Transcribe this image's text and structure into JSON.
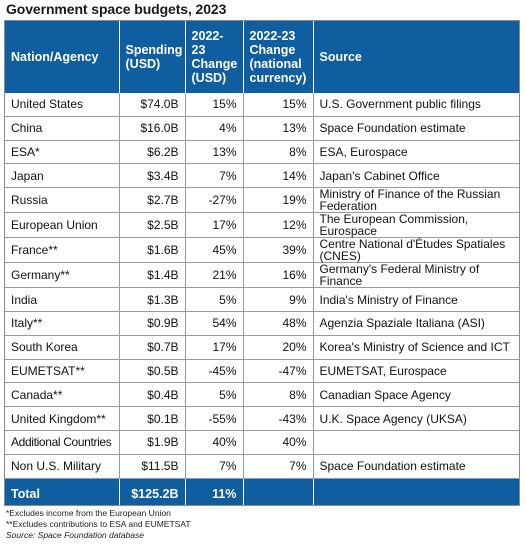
{
  "title": "Government space budgets, 2023",
  "columns": [
    "Nation/Agency",
    "Spending (USD)",
    "2022-23 Change (USD)",
    "2022-23 Change (national currency)",
    "Source"
  ],
  "rows": [
    {
      "nation": "United States",
      "spending": "$74.0B",
      "change_usd": "15%",
      "change_nat": "15%",
      "source": "U.S. Government public filings"
    },
    {
      "nation": "China",
      "spending": "$16.0B",
      "change_usd": "4%",
      "change_nat": "13%",
      "source": "Space Foundation estimate"
    },
    {
      "nation": "ESA*",
      "spending": "$6.2B",
      "change_usd": "13%",
      "change_nat": "8%",
      "source": "ESA, Eurospace"
    },
    {
      "nation": "Japan",
      "spending": "$3.4B",
      "change_usd": "7%",
      "change_nat": "14%",
      "source": "Japan's Cabinet Office"
    },
    {
      "nation": "Russia",
      "spending": "$2.7B",
      "change_usd": "-27%",
      "change_nat": "19%",
      "source": "Ministry of Finance of the Russian Federation"
    },
    {
      "nation": "European Union",
      "spending": "$2.5B",
      "change_usd": "17%",
      "change_nat": "12%",
      "source": "The European Commission, Eurospace"
    },
    {
      "nation": "France**",
      "spending": "$1.6B",
      "change_usd": "45%",
      "change_nat": "39%",
      "source": "Centre National d'Études Spatiales (CNES)"
    },
    {
      "nation": "Germany**",
      "spending": "$1.4B",
      "change_usd": "21%",
      "change_nat": "16%",
      "source": "Germany's Federal Ministry of Finance"
    },
    {
      "nation": "India",
      "spending": "$1.3B",
      "change_usd": "5%",
      "change_nat": "9%",
      "source": "India's Ministry of Finance"
    },
    {
      "nation": "Italy**",
      "spending": "$0.9B",
      "change_usd": "54%",
      "change_nat": "48%",
      "source": "Agenzia Spaziale Italiana (ASI)"
    },
    {
      "nation": "South Korea",
      "spending": "$0.7B",
      "change_usd": "17%",
      "change_nat": "20%",
      "source": "Korea's Ministry of Science and ICT"
    },
    {
      "nation": "EUMETSAT**",
      "spending": "$0.5B",
      "change_usd": "-45%",
      "change_nat": "-47%",
      "source": "EUMETSAT, Eurospace"
    },
    {
      "nation": "Canada**",
      "spending": "$0.4B",
      "change_usd": "5%",
      "change_nat": "8%",
      "source": "Canadian Space Agency"
    },
    {
      "nation": "United Kingdom**",
      "spending": "$0.1B",
      "change_usd": "-55%",
      "change_nat": "-43%",
      "source": "U.K. Space Agency (UKSA)"
    },
    {
      "nation": "Additional Countries",
      "spending": "$1.9B",
      "change_usd": "40%",
      "change_nat": "40%",
      "source": ""
    },
    {
      "nation": "Non U.S. Military",
      "spending": "$11.5B",
      "change_usd": "7%",
      "change_nat": "7%",
      "source": "Space Foundation estimate"
    }
  ],
  "total": {
    "label": "Total",
    "spending": "$125.2B",
    "change_usd": "11%",
    "change_nat": "",
    "source": ""
  },
  "notes": {
    "note1": "*Excludes income from the European Union",
    "note2": "**Excludes contributions to ESA and EUMETSAT",
    "source": "Source: Space Foundation database"
  },
  "colors": {
    "header_bg": "#0f5fa0",
    "header_text": "#ffffff",
    "grid": "#9a9a9a"
  }
}
